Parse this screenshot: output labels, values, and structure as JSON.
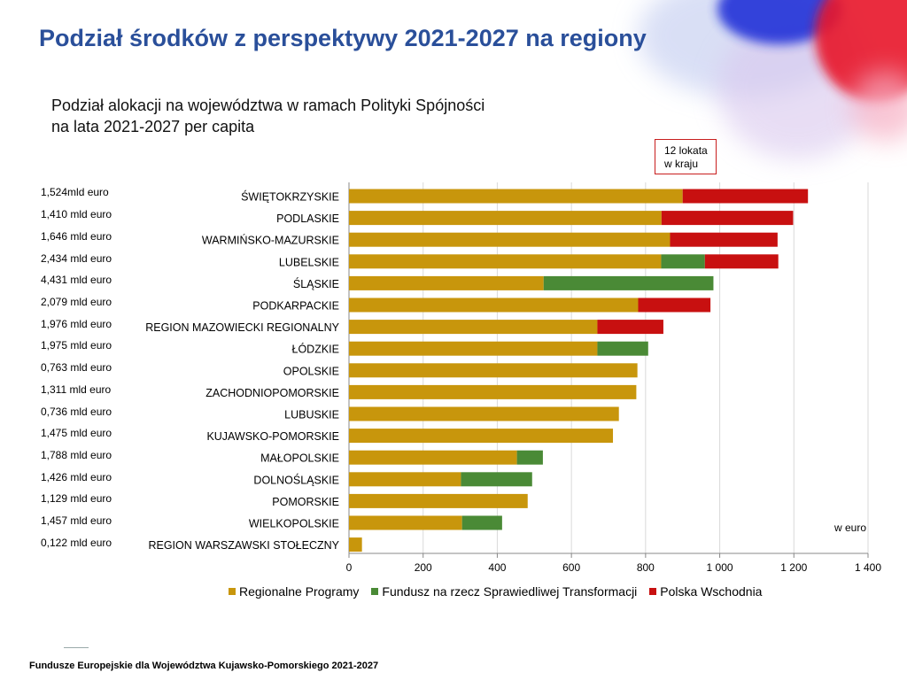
{
  "title": "Podział środków z perspektywy 2021-2027 na regiony",
  "subtitle_line1": "Podział alokacji na województwa w ramach Polityki Spójności",
  "subtitle_line2": "na lata 2021-2027 per capita",
  "note_line1": "12 lokata",
  "note_line2": "w kraju",
  "unit_label": "w euro",
  "footer": "Fundusze Europejskie dla Województwa Kujawsko-Pomorskiego 2021-2027",
  "funds": [
    "1,524mld euro",
    "1,410 mld euro",
    "1,646 mld euro",
    "2,434 mld euro",
    "4,431 mld euro",
    "2,079 mld euro",
    "1,976 mld euro",
    "1,975 mld euro",
    "0,763 mld euro",
    "1,311 mld euro",
    "0,736 mld euro",
    "1,475 mld euro",
    "1,788 mld euro",
    "1,426 mld euro",
    "1,129 mld euro",
    "1,457 mld euro",
    "0,122 mld euro"
  ],
  "colors": {
    "title": "#2a4f9a",
    "regional": "#c8960c",
    "jtf": "#4a8a36",
    "east": "#c81010"
  },
  "chart_data": {
    "type": "bar",
    "orientation": "horizontal",
    "stacked": true,
    "categories": [
      "ŚWIĘTOKRZYSKIE",
      "PODLASKIE",
      "WARMIŃSKO-MAZURSKIE",
      "LUBELSKIE",
      "ŚLĄSKIE",
      "PODKARPACKIE",
      "REGION MAZOWIECKI REGIONALNY",
      "ŁÓDZKIE",
      "OPOLSKIE",
      "ZACHODNIOPOMORSKIE",
      "LUBUSKIE",
      "KUJAWSKO-POMORSKIE",
      "MAŁOPOLSKIE",
      "DOLNOŚLĄSKIE",
      "POMORSKIE",
      "WIELKOPOLSKIE",
      "REGION WARSZAWSKI STOŁECZNY"
    ],
    "series": [
      {
        "name": "Regionalne Programy",
        "values": [
          900,
          843,
          866,
          842,
          525,
          780,
          670,
          670,
          778,
          775,
          728,
          712,
          453,
          302,
          482,
          305,
          35
        ]
      },
      {
        "name": "Fundusz na rzecz Sprawiedliwej Transformacji",
        "values": [
          0,
          0,
          0,
          118,
          458,
          0,
          0,
          137,
          0,
          0,
          0,
          0,
          70,
          192,
          0,
          108,
          0
        ]
      },
      {
        "name": "Polska Wschodnia",
        "values": [
          338,
          355,
          290,
          198,
          0,
          195,
          178,
          0,
          0,
          0,
          0,
          0,
          0,
          0,
          0,
          0,
          0
        ]
      }
    ],
    "xlim": [
      0,
      1400
    ],
    "xticks": [
      0,
      200,
      400,
      600,
      800,
      1000,
      1200,
      1400
    ],
    "xtick_labels": [
      "0",
      "200",
      "400",
      "600",
      "800",
      "1 000",
      "1 200",
      "1 400"
    ],
    "grid": true,
    "legend": "bottom"
  }
}
